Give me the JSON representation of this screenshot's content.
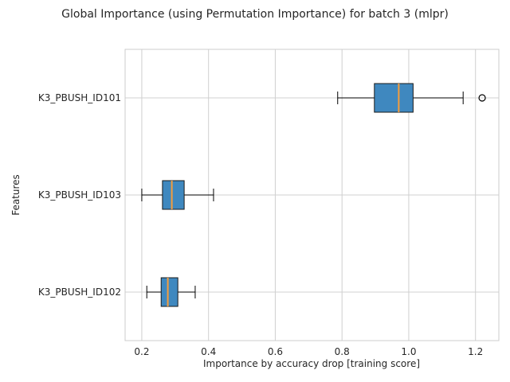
{
  "chart_data": {
    "type": "boxplot",
    "orientation": "horizontal",
    "title": "Global Importance (using Permutation Importance) for batch 3 (mlpr)",
    "xlabel": "Importance by accuracy drop [training score]",
    "ylabel": "Features",
    "xlim": [
      0.15,
      1.27
    ],
    "xticks": [
      0.2,
      0.4,
      0.6,
      0.8,
      1.0,
      1.2
    ],
    "xtick_labels": [
      "0.2",
      "0.4",
      "0.6",
      "0.8",
      "1.0",
      "1.2"
    ],
    "grid": true,
    "colors": {
      "box_fill": "#3f88bf",
      "median": "#f59d3c",
      "frame": "#cccccc",
      "grid": "#d0d0d0"
    },
    "categories": [
      "K3_PBUSH_ID102",
      "K3_PBUSH_ID103",
      "K3_PBUSH_ID101"
    ],
    "boxes": [
      {
        "label": "K3_PBUSH_ID102",
        "whisker_low": 0.215,
        "q1": 0.258,
        "median": 0.278,
        "q3": 0.308,
        "whisker_high": 0.36,
        "outliers": []
      },
      {
        "label": "K3_PBUSH_ID103",
        "whisker_low": 0.2,
        "q1": 0.262,
        "median": 0.29,
        "q3": 0.327,
        "whisker_high": 0.415,
        "outliers": []
      },
      {
        "label": "K3_PBUSH_ID101",
        "whisker_low": 0.787,
        "q1": 0.897,
        "median": 0.97,
        "q3": 1.013,
        "whisker_high": 1.163,
        "outliers": [
          1.22
        ]
      }
    ]
  }
}
